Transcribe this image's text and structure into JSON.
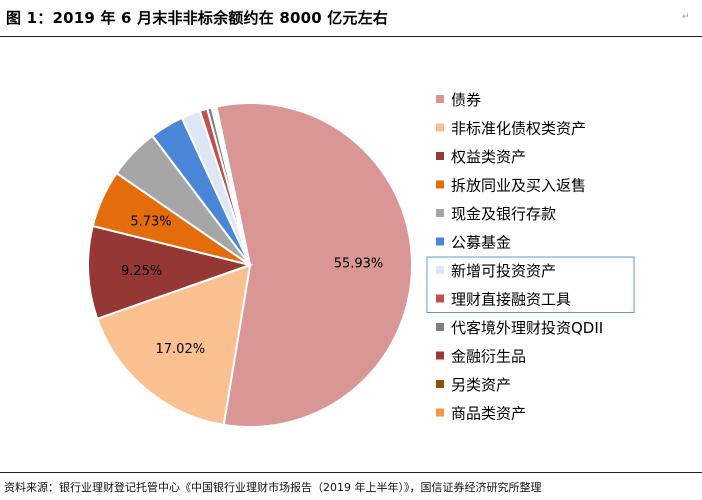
{
  "figure": {
    "title": "图 1：2019 年 6 月末非非标余额约在 8000 亿元左右",
    "source": "资料来源：银行业理财登记托管中心《中国银行业理财市场报告（2019 年上半年）》，国信证券经济研究所整理"
  },
  "chart_data": {
    "type": "pie",
    "title": "",
    "unit": "%",
    "legend_position": "right",
    "slices": [
      {
        "label": "债券",
        "value": 55.93,
        "value_label": "55.93%",
        "color": "#D99694"
      },
      {
        "label": "非标准化债权类资产",
        "value": 17.02,
        "value_label": "17.02%",
        "color": "#FAC090"
      },
      {
        "label": "权益类资产",
        "value": 9.25,
        "value_label": "9.25%",
        "color": "#953735"
      },
      {
        "label": "拆放同业及买入返售",
        "value": 5.73,
        "value_label": "5.73%",
        "color": "#E46C0A"
      },
      {
        "label": "现金及银行存款",
        "value": 5.1,
        "value_label": "",
        "color": "#A6A6A6"
      },
      {
        "label": "公募基金",
        "value": 3.4,
        "value_label": "",
        "color": "#4A86D8"
      },
      {
        "label": "新增可投资资产",
        "value": 1.9,
        "value_label": "",
        "color": "#DDE6F4"
      },
      {
        "label": "理财直接融资工具",
        "value": 0.75,
        "value_label": "",
        "color": "#C0504D"
      },
      {
        "label": "代客境外理财投资QDII",
        "value": 0.45,
        "value_label": "",
        "color": "#7F7F7F"
      },
      {
        "label": "金融衍生品",
        "value": 0.2,
        "value_label": "",
        "color": "#9B3B39"
      },
      {
        "label": "另类资产",
        "value": 0.15,
        "value_label": "",
        "color": "#974706"
      },
      {
        "label": "商品类资产",
        "value": 0.12,
        "value_label": "",
        "color": "#F79646"
      }
    ],
    "highlighted_legend_entries": [
      "新增可投资资产",
      "理财直接融资工具"
    ]
  }
}
